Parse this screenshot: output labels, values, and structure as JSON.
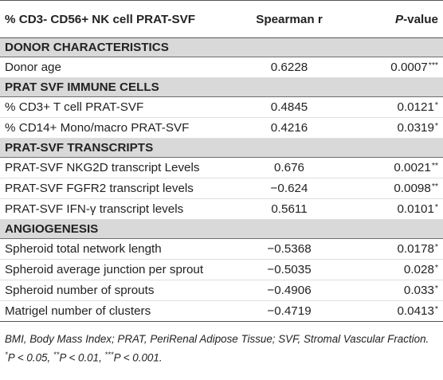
{
  "table": {
    "headers": {
      "col1": "% CD3- CD56+ NK cell PRAT-SVF",
      "col2": "Spearman r",
      "col3_italic": "P",
      "col3_rest": "-value"
    },
    "sections": [
      {
        "title": "DONOR CHARACTERISTICS",
        "rows": [
          {
            "label": "Donor age",
            "r": "0.6228",
            "p": "0.0007",
            "stars": "***"
          }
        ]
      },
      {
        "title": "PRAT SVF IMMUNE CELLS",
        "rows": [
          {
            "label": "% CD3+ T cell PRAT-SVF",
            "r": "0.4845",
            "p": "0.0121",
            "stars": "*"
          },
          {
            "label": "% CD14+ Mono/macro PRAT-SVF",
            "r": "0.4216",
            "p": "0.0319",
            "stars": "*"
          }
        ]
      },
      {
        "title": "PRAT-SVF TRANSCRIPTS",
        "rows": [
          {
            "label": "PRAT-SVF NKG2D transcript Levels",
            "r": "0.676",
            "p": "0.0021",
            "stars": "**"
          },
          {
            "label": "PRAT-SVF FGFR2 transcript levels",
            "r": "−0.624",
            "p": "0.0098",
            "stars": "**"
          },
          {
            "label": "PRAT-SVF IFN-γ transcript levels",
            "r": "0.5611",
            "p": "0.0101",
            "stars": "*"
          }
        ]
      },
      {
        "title": "ANGIOGENESIS",
        "rows": [
          {
            "label": "Spheroid total network length",
            "r": "−0.5368",
            "p": "0.0178",
            "stars": "*"
          },
          {
            "label": "Spheroid average junction per sprout",
            "r": "−0.5035",
            "p": "0.028",
            "stars": "*"
          },
          {
            "label": "Spheroid number of sprouts",
            "r": "−0.4906",
            "p": "0.033",
            "stars": "*"
          },
          {
            "label": "Matrigel number of clusters",
            "r": "−0.4719",
            "p": "0.0413",
            "stars": "*"
          }
        ]
      }
    ]
  },
  "footnote": {
    "abbrev": "BMI, Body Mass Index; PRAT, PeriRenal Adipose Tissue; SVF, Stromal Vascular Fraction.",
    "sig1_star": "*",
    "sig1_text": "P < 0.05, ",
    "sig2_star": "**",
    "sig2_text": "P < 0.01, ",
    "sig3_star": "***",
    "sig3_text": "P < 0.001."
  }
}
